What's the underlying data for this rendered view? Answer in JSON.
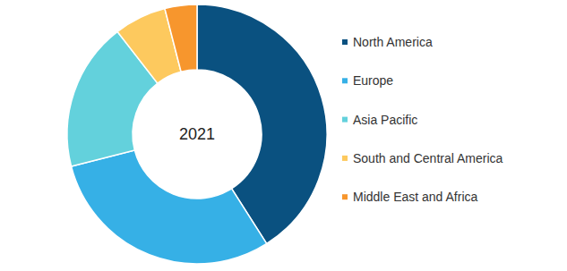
{
  "chart_data": {
    "type": "pie",
    "title": "2021",
    "categories": [
      "North America",
      "Europe",
      "Asia Pacific",
      "South and Central America",
      "Middle East and Africa"
    ],
    "values": [
      41,
      30,
      18.5,
      6.5,
      4
    ],
    "colors": [
      "#0a5180",
      "#36b0e6",
      "#63d1dc",
      "#fdc95e",
      "#f7962d"
    ],
    "legend": "right"
  }
}
